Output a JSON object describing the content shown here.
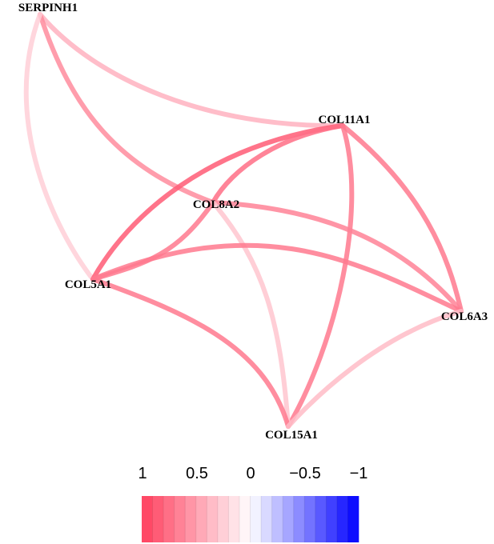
{
  "nodes": [
    {
      "id": "SERPINH1",
      "label": "SERPINH1"
    },
    {
      "id": "COL11A1",
      "label": "COL11A1"
    },
    {
      "id": "COL8A2",
      "label": "COL8A2"
    },
    {
      "id": "COL5A1",
      "label": "COL5A1"
    },
    {
      "id": "COL6A3",
      "label": "COL6A3"
    },
    {
      "id": "COL15A1",
      "label": "COL15A1"
    }
  ],
  "edges": [
    {
      "source": "SERPINH1",
      "target": "COL11A1",
      "correlation": 0.4
    },
    {
      "source": "SERPINH1",
      "target": "COL8A2",
      "correlation": 0.6
    },
    {
      "source": "SERPINH1",
      "target": "COL5A1",
      "correlation": 0.25
    },
    {
      "source": "COL11A1",
      "target": "COL5A1",
      "correlation": 0.85
    },
    {
      "source": "COL11A1",
      "target": "COL8A2",
      "correlation": 0.75
    },
    {
      "source": "COL11A1",
      "target": "COL6A3",
      "correlation": 0.7
    },
    {
      "source": "COL11A1",
      "target": "COL15A1",
      "correlation": 0.7
    },
    {
      "source": "COL8A2",
      "target": "COL6A3",
      "correlation": 0.65
    },
    {
      "source": "COL8A2",
      "target": "COL5A1",
      "correlation": 0.7
    },
    {
      "source": "COL8A2",
      "target": "COL15A1",
      "correlation": 0.3
    },
    {
      "source": "COL5A1",
      "target": "COL6A3",
      "correlation": 0.7
    },
    {
      "source": "COL5A1",
      "target": "COL15A1",
      "correlation": 0.7
    },
    {
      "source": "COL6A3",
      "target": "COL15A1",
      "correlation": 0.35
    }
  ],
  "color_scale": {
    "tick_labels": [
      "1",
      "0.5",
      "0",
      "−0.5",
      "−1"
    ],
    "positive_color": "#ff3f5e",
    "negative_color": "#0000ff"
  }
}
